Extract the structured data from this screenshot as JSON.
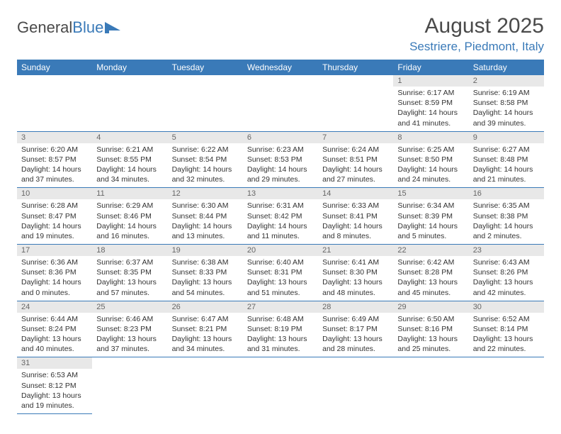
{
  "logo": {
    "text1": "General",
    "text2": "Blue"
  },
  "title": "August 2025",
  "location": "Sestriere, Piedmont, Italy",
  "weekdays": [
    "Sunday",
    "Monday",
    "Tuesday",
    "Wednesday",
    "Thursday",
    "Friday",
    "Saturday"
  ],
  "colors": {
    "header_bg": "#3a7ab8",
    "header_fg": "#ffffff",
    "daynum_bg": "#e8e8e8",
    "border": "#3a7ab8",
    "text": "#333333",
    "muted": "#666666"
  },
  "first_weekday_index": 5,
  "days": [
    {
      "n": 1,
      "sunrise": "6:17 AM",
      "sunset": "8:59 PM",
      "daylight": "14 hours and 41 minutes."
    },
    {
      "n": 2,
      "sunrise": "6:19 AM",
      "sunset": "8:58 PM",
      "daylight": "14 hours and 39 minutes."
    },
    {
      "n": 3,
      "sunrise": "6:20 AM",
      "sunset": "8:57 PM",
      "daylight": "14 hours and 37 minutes."
    },
    {
      "n": 4,
      "sunrise": "6:21 AM",
      "sunset": "8:55 PM",
      "daylight": "14 hours and 34 minutes."
    },
    {
      "n": 5,
      "sunrise": "6:22 AM",
      "sunset": "8:54 PM",
      "daylight": "14 hours and 32 minutes."
    },
    {
      "n": 6,
      "sunrise": "6:23 AM",
      "sunset": "8:53 PM",
      "daylight": "14 hours and 29 minutes."
    },
    {
      "n": 7,
      "sunrise": "6:24 AM",
      "sunset": "8:51 PM",
      "daylight": "14 hours and 27 minutes."
    },
    {
      "n": 8,
      "sunrise": "6:25 AM",
      "sunset": "8:50 PM",
      "daylight": "14 hours and 24 minutes."
    },
    {
      "n": 9,
      "sunrise": "6:27 AM",
      "sunset": "8:48 PM",
      "daylight": "14 hours and 21 minutes."
    },
    {
      "n": 10,
      "sunrise": "6:28 AM",
      "sunset": "8:47 PM",
      "daylight": "14 hours and 19 minutes."
    },
    {
      "n": 11,
      "sunrise": "6:29 AM",
      "sunset": "8:46 PM",
      "daylight": "14 hours and 16 minutes."
    },
    {
      "n": 12,
      "sunrise": "6:30 AM",
      "sunset": "8:44 PM",
      "daylight": "14 hours and 13 minutes."
    },
    {
      "n": 13,
      "sunrise": "6:31 AM",
      "sunset": "8:42 PM",
      "daylight": "14 hours and 11 minutes."
    },
    {
      "n": 14,
      "sunrise": "6:33 AM",
      "sunset": "8:41 PM",
      "daylight": "14 hours and 8 minutes."
    },
    {
      "n": 15,
      "sunrise": "6:34 AM",
      "sunset": "8:39 PM",
      "daylight": "14 hours and 5 minutes."
    },
    {
      "n": 16,
      "sunrise": "6:35 AM",
      "sunset": "8:38 PM",
      "daylight": "14 hours and 2 minutes."
    },
    {
      "n": 17,
      "sunrise": "6:36 AM",
      "sunset": "8:36 PM",
      "daylight": "14 hours and 0 minutes."
    },
    {
      "n": 18,
      "sunrise": "6:37 AM",
      "sunset": "8:35 PM",
      "daylight": "13 hours and 57 minutes."
    },
    {
      "n": 19,
      "sunrise": "6:38 AM",
      "sunset": "8:33 PM",
      "daylight": "13 hours and 54 minutes."
    },
    {
      "n": 20,
      "sunrise": "6:40 AM",
      "sunset": "8:31 PM",
      "daylight": "13 hours and 51 minutes."
    },
    {
      "n": 21,
      "sunrise": "6:41 AM",
      "sunset": "8:30 PM",
      "daylight": "13 hours and 48 minutes."
    },
    {
      "n": 22,
      "sunrise": "6:42 AM",
      "sunset": "8:28 PM",
      "daylight": "13 hours and 45 minutes."
    },
    {
      "n": 23,
      "sunrise": "6:43 AM",
      "sunset": "8:26 PM",
      "daylight": "13 hours and 42 minutes."
    },
    {
      "n": 24,
      "sunrise": "6:44 AM",
      "sunset": "8:24 PM",
      "daylight": "13 hours and 40 minutes."
    },
    {
      "n": 25,
      "sunrise": "6:46 AM",
      "sunset": "8:23 PM",
      "daylight": "13 hours and 37 minutes."
    },
    {
      "n": 26,
      "sunrise": "6:47 AM",
      "sunset": "8:21 PM",
      "daylight": "13 hours and 34 minutes."
    },
    {
      "n": 27,
      "sunrise": "6:48 AM",
      "sunset": "8:19 PM",
      "daylight": "13 hours and 31 minutes."
    },
    {
      "n": 28,
      "sunrise": "6:49 AM",
      "sunset": "8:17 PM",
      "daylight": "13 hours and 28 minutes."
    },
    {
      "n": 29,
      "sunrise": "6:50 AM",
      "sunset": "8:16 PM",
      "daylight": "13 hours and 25 minutes."
    },
    {
      "n": 30,
      "sunrise": "6:52 AM",
      "sunset": "8:14 PM",
      "daylight": "13 hours and 22 minutes."
    },
    {
      "n": 31,
      "sunrise": "6:53 AM",
      "sunset": "8:12 PM",
      "daylight": "13 hours and 19 minutes."
    }
  ],
  "labels": {
    "sunrise": "Sunrise: ",
    "sunset": "Sunset: ",
    "daylight": "Daylight: "
  }
}
